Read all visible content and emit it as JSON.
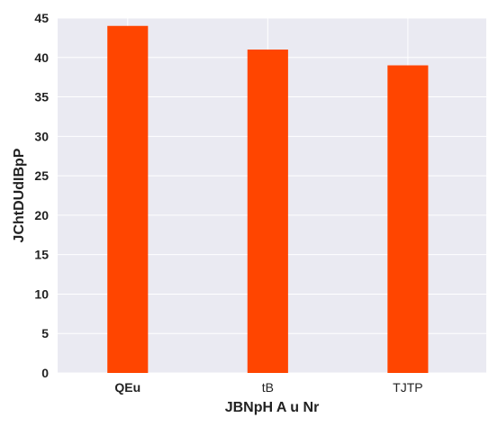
{
  "chart_data": {
    "type": "bar",
    "categories": [
      "QEu",
      "tB",
      "TJTP"
    ],
    "values": [
      44,
      41,
      39
    ],
    "xlabel": "JBNpH A u Nr",
    "ylabel": "JChtDUdIBpP",
    "ylim": [
      0,
      45
    ],
    "yticks": [
      "0",
      "5",
      "10",
      "15",
      "20",
      "25",
      "30",
      "35",
      "40",
      "45"
    ],
    "bar_color": "#ff4500",
    "plot_background": "#eaeaf2",
    "grid": true
  }
}
